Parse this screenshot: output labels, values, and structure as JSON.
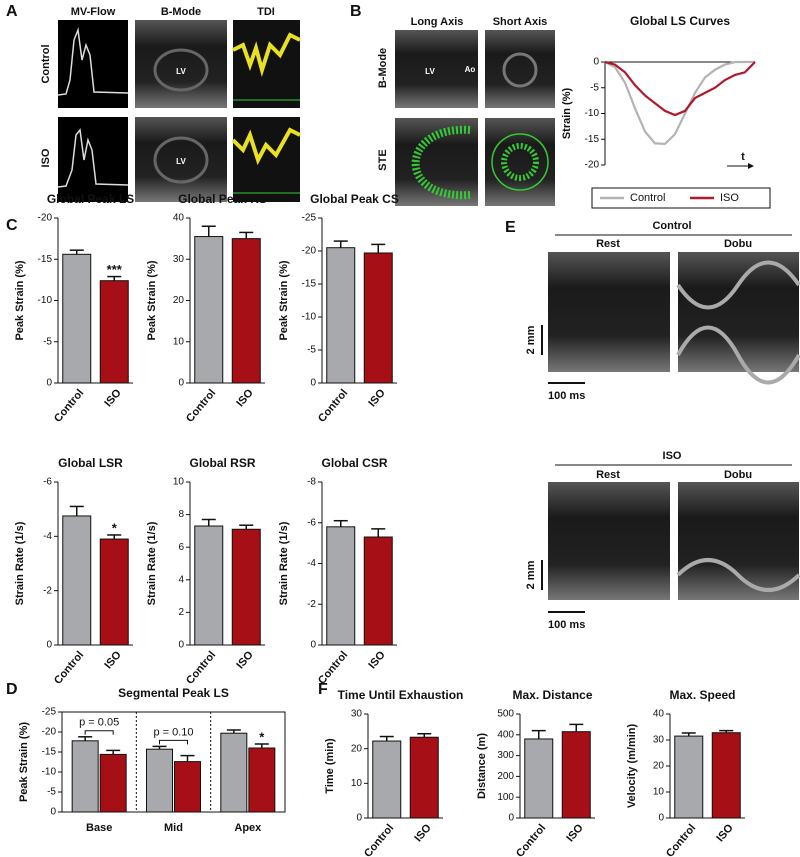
{
  "labels": {
    "panel_a": {
      "letter": "A",
      "columns": [
        "MV-Flow",
        "B-Mode",
        "TDI"
      ],
      "rows": [
        "Control",
        "ISO"
      ],
      "image_labels": [
        "LV",
        "LV"
      ]
    },
    "panel_b": {
      "letter": "B",
      "columns": [
        "Long Axis",
        "Short Axis"
      ],
      "rows": [
        "B-Mode",
        "STE"
      ],
      "image_labels": [
        "LV",
        "Ao"
      ]
    },
    "panel_e": {
      "letter": "E",
      "groups": [
        {
          "name": "Control",
          "columns": [
            "Rest",
            "Dobu"
          ],
          "scale_y": "2 mm",
          "scale_x": "100 ms"
        },
        {
          "name": "ISO",
          "columns": [
            "Rest",
            "Dobu"
          ],
          "scale_y": "2 mm",
          "scale_x": "100 ms"
        }
      ]
    },
    "panel_letters": [
      "C",
      "D",
      "F"
    ]
  },
  "chart_data": [
    {
      "type": "line",
      "title": "Global LS Curves",
      "ylabel": "Strain (%)",
      "x": [
        0,
        1,
        2,
        3,
        4,
        5,
        6,
        7,
        8,
        9,
        10,
        11,
        12,
        13,
        14,
        15
      ],
      "xlim": [
        0,
        15
      ],
      "ylim": [
        -20,
        0
      ],
      "yticks": [
        0,
        -5,
        -10,
        -15,
        -20
      ],
      "annotations": [
        "t"
      ],
      "series": [
        {
          "name": "Control",
          "color": "#b3b3b3",
          "values": [
            0,
            -1,
            -4,
            -9,
            -13.5,
            -15.8,
            -15.9,
            -14,
            -10,
            -6,
            -3,
            -1.5,
            -0.5,
            0,
            0,
            0
          ]
        },
        {
          "name": "ISO",
          "color": "#b2182b",
          "values": [
            0,
            -0.5,
            -2,
            -4.5,
            -6.5,
            -8,
            -9.5,
            -10.3,
            -9.5,
            -7,
            -6,
            -5,
            -3.5,
            -2.5,
            -2,
            0
          ]
        }
      ]
    },
    {
      "type": "bar",
      "title": "Global Peak LS",
      "ylabel": "Peak Strain (%)",
      "categories": [
        "Control",
        "ISO"
      ],
      "values": [
        -15.6,
        -12.4
      ],
      "errors": [
        0.5,
        0.5
      ],
      "colors": [
        "#a8a9ad",
        "#a50f15"
      ],
      "ylim": [
        0,
        -20
      ],
      "yticks": [
        0,
        -5,
        -10,
        -15,
        -20
      ],
      "annotations": [
        "***"
      ]
    },
    {
      "type": "bar",
      "title": "Global Peak RS",
      "ylabel": "Peak Strain (%)",
      "categories": [
        "Control",
        "ISO"
      ],
      "values": [
        35.5,
        35
      ],
      "errors": [
        2.5,
        1.5
      ],
      "colors": [
        "#a8a9ad",
        "#a50f15"
      ],
      "ylim": [
        0,
        40
      ],
      "yticks": [
        0,
        10,
        20,
        30,
        40
      ]
    },
    {
      "type": "bar",
      "title": "Global Peak CS",
      "ylabel": "Peak Strain (%)",
      "categories": [
        "Control",
        "ISO"
      ],
      "values": [
        -20.5,
        -19.7
      ],
      "errors": [
        1,
        1.3
      ],
      "colors": [
        "#a8a9ad",
        "#a50f15"
      ],
      "ylim": [
        0,
        -25
      ],
      "yticks": [
        0,
        -5,
        -10,
        -15,
        -20,
        -25
      ]
    },
    {
      "type": "bar",
      "title": "Global LSR",
      "ylabel": "Strain Rate (1/s)",
      "categories": [
        "Control",
        "ISO"
      ],
      "values": [
        -4.75,
        -3.9
      ],
      "errors": [
        0.35,
        0.15
      ],
      "colors": [
        "#a8a9ad",
        "#a50f15"
      ],
      "ylim": [
        0,
        -6
      ],
      "yticks": [
        0,
        -2,
        -4,
        -6
      ],
      "annotations": [
        "*"
      ]
    },
    {
      "type": "bar",
      "title": "Global RSR",
      "ylabel": "Strain Rate (1/s)",
      "categories": [
        "Control",
        "ISO"
      ],
      "values": [
        7.3,
        7.1
      ],
      "errors": [
        0.4,
        0.25
      ],
      "colors": [
        "#a8a9ad",
        "#a50f15"
      ],
      "ylim": [
        0,
        10
      ],
      "yticks": [
        0,
        2,
        4,
        6,
        8,
        10
      ]
    },
    {
      "type": "bar",
      "title": "Global CSR",
      "ylabel": "Strain Rate (1/s)",
      "categories": [
        "Control",
        "ISO"
      ],
      "values": [
        -5.8,
        -5.3
      ],
      "errors": [
        0.3,
        0.4
      ],
      "colors": [
        "#a8a9ad",
        "#a50f15"
      ],
      "ylim": [
        0,
        -8
      ],
      "yticks": [
        0,
        -2,
        -4,
        -6,
        -8
      ]
    },
    {
      "type": "bar",
      "title": "Segmental Peak LS",
      "ylabel": "Peak Strain (%)",
      "categories": [
        "Base",
        "Mid",
        "Apex"
      ],
      "series": [
        {
          "color": "#a8a9ad",
          "values": [
            -17.8,
            -15.7,
            -19.7
          ],
          "errors": [
            1,
            0.7,
            0.8
          ]
        },
        {
          "color": "#a50f15",
          "values": [
            -14.4,
            -12.6,
            -16
          ],
          "errors": [
            1,
            1.5,
            1
          ]
        }
      ],
      "ylim": [
        0,
        -25
      ],
      "yticks": [
        0,
        -5,
        -10,
        -15,
        -20,
        -25
      ],
      "annotations": [
        "p = 0.05",
        "p = 0.10",
        "*"
      ]
    },
    {
      "type": "bar",
      "title": "Time Until Exhaustion",
      "ylabel": "Time (min)",
      "categories": [
        "Control",
        "ISO"
      ],
      "values": [
        22.2,
        23.3
      ],
      "errors": [
        1.3,
        1
      ],
      "colors": [
        "#a8a9ad",
        "#a50f15"
      ],
      "ylim": [
        0,
        30
      ],
      "yticks": [
        0,
        10,
        20,
        30
      ]
    },
    {
      "type": "bar",
      "title": "Max. Distance",
      "ylabel": "Distance (m)",
      "categories": [
        "Control",
        "ISO"
      ],
      "values": [
        380,
        415
      ],
      "errors": [
        40,
        35
      ],
      "colors": [
        "#a8a9ad",
        "#a50f15"
      ],
      "ylim": [
        0,
        500
      ],
      "yticks": [
        0,
        100,
        200,
        300,
        400,
        500
      ]
    },
    {
      "type": "bar",
      "title": "Max. Speed",
      "ylabel": "Velocity (m/min)",
      "categories": [
        "Control",
        "ISO"
      ],
      "values": [
        31.5,
        32.8
      ],
      "errors": [
        1.2,
        0.8
      ],
      "colors": [
        "#a8a9ad",
        "#a50f15"
      ],
      "ylim": [
        0,
        40
      ],
      "yticks": [
        0,
        10,
        20,
        30,
        40
      ]
    }
  ]
}
